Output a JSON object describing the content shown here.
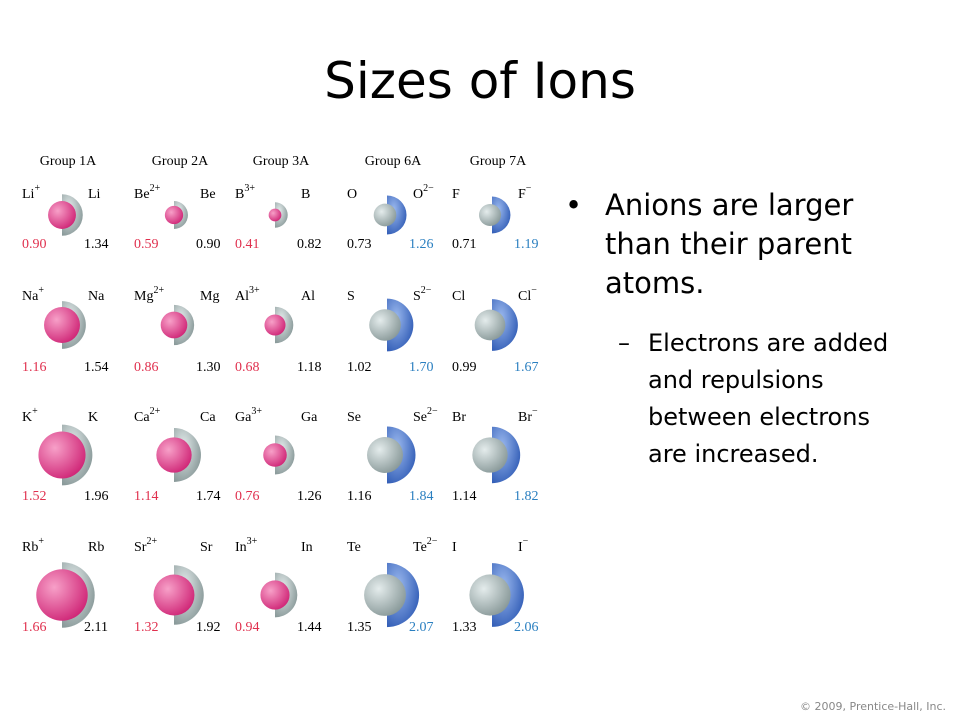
{
  "title": "Sizes of Ions",
  "figure": {
    "groups": [
      "Group 1A",
      "Group 2A",
      "Group 3A",
      "Group 6A",
      "Group 7A"
    ],
    "rows": [
      [
        {
          "left": {
            "symbol": "Li",
            "charge": "+"
          },
          "right": {
            "symbol": "Li"
          },
          "left_radius": "0.90",
          "right_radius": "1.34"
        },
        {
          "left": {
            "symbol": "Be",
            "charge": "2+"
          },
          "right": {
            "symbol": "Be"
          },
          "left_radius": "0.59",
          "right_radius": "0.90"
        },
        {
          "left": {
            "symbol": "B",
            "charge": "3+"
          },
          "right": {
            "symbol": "B"
          },
          "left_radius": "0.41",
          "right_radius": "0.82"
        },
        {
          "left": {
            "symbol": "O"
          },
          "right": {
            "symbol": "O",
            "charge": "2−"
          },
          "left_radius": "0.73",
          "right_radius": "1.26"
        },
        {
          "left": {
            "symbol": "F"
          },
          "right": {
            "symbol": "F",
            "charge": "−"
          },
          "left_radius": "0.71",
          "right_radius": "1.19"
        }
      ],
      [
        {
          "left": {
            "symbol": "Na",
            "charge": "+"
          },
          "right": {
            "symbol": "Na"
          },
          "left_radius": "1.16",
          "right_radius": "1.54"
        },
        {
          "left": {
            "symbol": "Mg",
            "charge": "2+"
          },
          "right": {
            "symbol": "Mg"
          },
          "left_radius": "0.86",
          "right_radius": "1.30"
        },
        {
          "left": {
            "symbol": "Al",
            "charge": "3+"
          },
          "right": {
            "symbol": "Al"
          },
          "left_radius": "0.68",
          "right_radius": "1.18"
        },
        {
          "left": {
            "symbol": "S"
          },
          "right": {
            "symbol": "S",
            "charge": "2−"
          },
          "left_radius": "1.02",
          "right_radius": "1.70"
        },
        {
          "left": {
            "symbol": "Cl"
          },
          "right": {
            "symbol": "Cl",
            "charge": "−"
          },
          "left_radius": "0.99",
          "right_radius": "1.67"
        }
      ],
      [
        {
          "left": {
            "symbol": "K",
            "charge": "+"
          },
          "right": {
            "symbol": "K"
          },
          "left_radius": "1.52",
          "right_radius": "1.96"
        },
        {
          "left": {
            "symbol": "Ca",
            "charge": "2+"
          },
          "right": {
            "symbol": "Ca"
          },
          "left_radius": "1.14",
          "right_radius": "1.74"
        },
        {
          "left": {
            "symbol": "Ga",
            "charge": "3+"
          },
          "right": {
            "symbol": "Ga"
          },
          "left_radius": "0.76",
          "right_radius": "1.26"
        },
        {
          "left": {
            "symbol": "Se"
          },
          "right": {
            "symbol": "Se",
            "charge": "2−"
          },
          "left_radius": "1.16",
          "right_radius": "1.84"
        },
        {
          "left": {
            "symbol": "Br"
          },
          "right": {
            "symbol": "Br",
            "charge": "−"
          },
          "left_radius": "1.14",
          "right_radius": "1.82"
        }
      ],
      [
        {
          "left": {
            "symbol": "Rb",
            "charge": "+"
          },
          "right": {
            "symbol": "Rb"
          },
          "left_radius": "1.66",
          "right_radius": "2.11"
        },
        {
          "left": {
            "symbol": "Sr",
            "charge": "2+"
          },
          "right": {
            "symbol": "Sr"
          },
          "left_radius": "1.32",
          "right_radius": "1.92"
        },
        {
          "left": {
            "symbol": "In",
            "charge": "3+"
          },
          "right": {
            "symbol": "In"
          },
          "left_radius": "0.94",
          "right_radius": "1.44"
        },
        {
          "left": {
            "symbol": "Te"
          },
          "right": {
            "symbol": "Te",
            "charge": "2−"
          },
          "left_radius": "1.35",
          "right_radius": "2.07"
        },
        {
          "left": {
            "symbol": "I"
          },
          "right": {
            "symbol": "I",
            "charge": "−"
          },
          "left_radius": "1.33",
          "right_radius": "2.06"
        }
      ]
    ]
  },
  "bullets": [
    {
      "text": "Anions are larger than their parent atoms.",
      "sub": [
        "Electrons are added and repulsions between electrons are increased."
      ]
    }
  ],
  "footer": "© 2009, Prentice-Hall, Inc."
}
